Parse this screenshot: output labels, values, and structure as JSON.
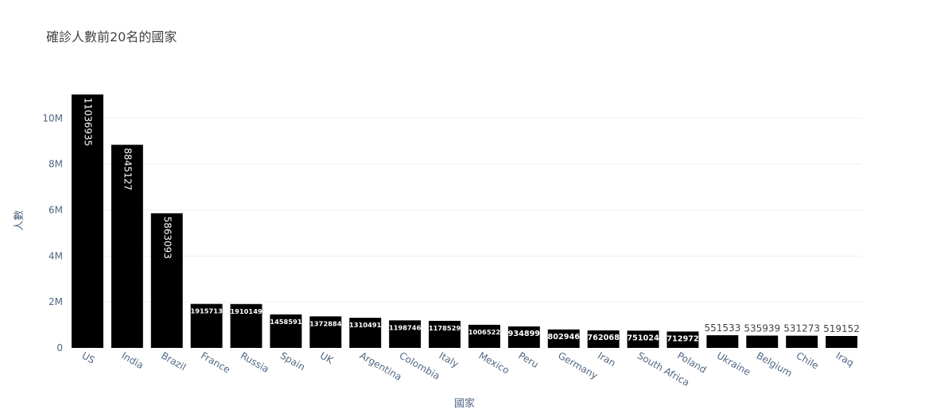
{
  "chart_data": {
    "type": "bar",
    "title": "確診人數前20名的國家",
    "xlabel": "國家",
    "ylabel": "人數",
    "ylim": [
      0,
      11103935
    ],
    "y_ticks": [
      0,
      2000000,
      4000000,
      6000000,
      8000000,
      10000000
    ],
    "y_tick_labels": [
      "0",
      "2M",
      "4M",
      "6M",
      "8M",
      "10M"
    ],
    "grid": true,
    "bar_color": "#000000",
    "gridline_color": "#ebf0f8",
    "tick_label_color": "#506784",
    "categories": [
      "US",
      "India",
      "Brazil",
      "France",
      "Russia",
      "Spain",
      "UK",
      "Argentina",
      "Colombia",
      "Italy",
      "Mexico",
      "Peru",
      "Germany",
      "Iran",
      "South Africa",
      "Poland",
      "Ukraine",
      "Belgium",
      "Chile",
      "Iraq"
    ],
    "values": [
      11036935,
      8845127,
      5863093,
      1915713,
      1910149,
      1458591,
      1372884,
      1310491,
      1198746,
      1178529,
      1006522,
      934899,
      802946,
      762068,
      751024,
      712972,
      551533,
      535939,
      531273,
      519152
    ]
  }
}
